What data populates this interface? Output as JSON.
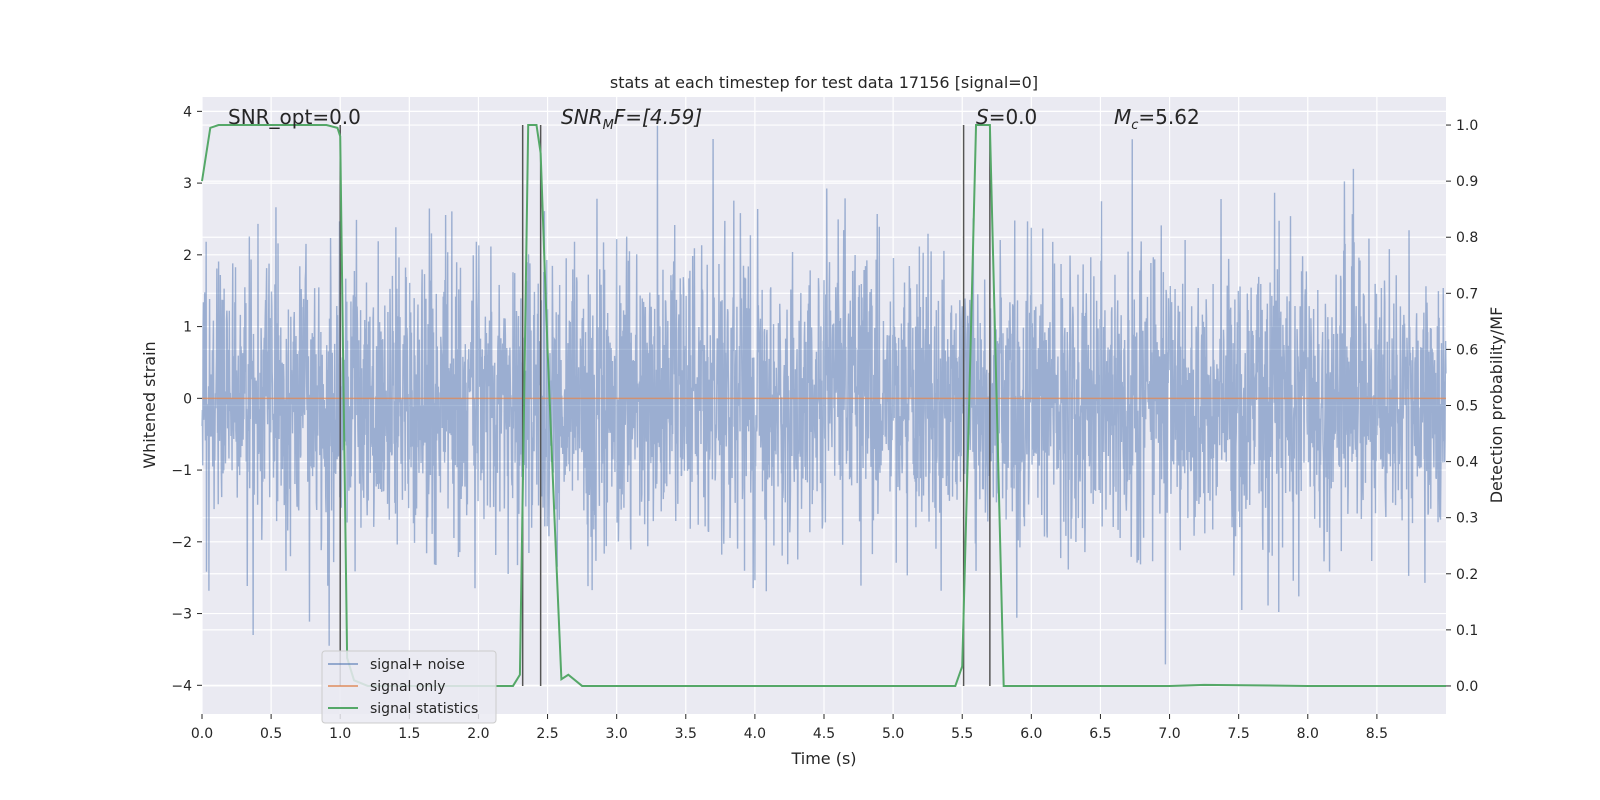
{
  "chart_data": {
    "type": "line",
    "title": "stats at each timestep for test data 17156 [signal=0]",
    "xlabel": "Time (s)",
    "ylabel_left": "Whitened strain",
    "ylabel_right": "Detection probability/MF",
    "xlim": [
      0.0,
      9.0
    ],
    "ylim_left": [
      -4.4,
      4.2
    ],
    "ylim_right": [
      -0.05,
      1.05
    ],
    "x_ticks": [
      "0.0",
      "0.5",
      "1.0",
      "1.5",
      "2.0",
      "2.5",
      "3.0",
      "3.5",
      "4.0",
      "4.5",
      "5.0",
      "5.5",
      "6.0",
      "6.5",
      "7.0",
      "7.5",
      "8.0",
      "8.5"
    ],
    "y_ticks_left": [
      "4",
      "3",
      "2",
      "1",
      "0",
      "−1",
      "−2",
      "−3",
      "−4"
    ],
    "y_ticks_right": [
      "1.0",
      "0.9",
      "0.8",
      "0.7",
      "0.6",
      "0.5",
      "0.4",
      "0.3",
      "0.2",
      "0.1",
      "0.0"
    ],
    "grid": true,
    "legend_position": "lower-left",
    "colors": {
      "background": "#eaeaf2",
      "grid": "#ffffff",
      "noise": "#4c72b0",
      "signal": "#dd8452",
      "statistics": "#55a868",
      "vlines": "#555555"
    },
    "annotations": {
      "snr_opt": "SNR_opt=0.0",
      "snr_mf_main": "SNR",
      "snr_mf_sub": "M",
      "snr_mf_rest": "F=[4.59]",
      "s_main": "S",
      "s_rest": "=0.0",
      "mc_main": "M",
      "mc_sub": "c",
      "mc_rest": "=5.62"
    },
    "series": [
      {
        "name": "signal+ noise",
        "kind": "noise_trace",
        "sample_rate_hz": 400,
        "std": 1.0,
        "range": [
          -3.8,
          3.8
        ]
      },
      {
        "name": "signal only",
        "kind": "line",
        "x": [
          0.0,
          9.0
        ],
        "y": [
          0.0,
          0.0
        ]
      },
      {
        "name": "signal statistics",
        "kind": "line",
        "axis": "right",
        "x": [
          0.0,
          0.06,
          0.12,
          0.5,
          0.9,
          0.98,
          1.0,
          1.02,
          1.05,
          1.1,
          1.2,
          1.5,
          2.0,
          2.25,
          2.3,
          2.33,
          2.36,
          2.42,
          2.45,
          2.5,
          2.55,
          2.6,
          2.65,
          2.75,
          3.0,
          4.0,
          5.0,
          5.45,
          5.5,
          5.55,
          5.6,
          5.65,
          5.7,
          5.75,
          5.8,
          5.9,
          6.5,
          7.0,
          7.25,
          8.0,
          9.0
        ],
        "y": [
          0.9,
          0.995,
          1.0,
          1.0,
          1.0,
          0.995,
          0.98,
          0.6,
          0.05,
          0.01,
          0.0,
          0.0,
          0.0,
          0.0,
          0.02,
          0.5,
          1.0,
          1.0,
          0.95,
          0.6,
          0.3,
          0.012,
          0.02,
          0.0,
          0.0,
          0.0,
          0.0,
          0.0,
          0.035,
          0.5,
          1.0,
          1.0,
          1.0,
          0.5,
          0.0,
          0.0,
          0.0,
          0.0,
          0.002,
          0.0,
          0.0
        ]
      }
    ],
    "vertical_lines": [
      1.0,
      2.32,
      2.45,
      5.51,
      5.7
    ]
  }
}
